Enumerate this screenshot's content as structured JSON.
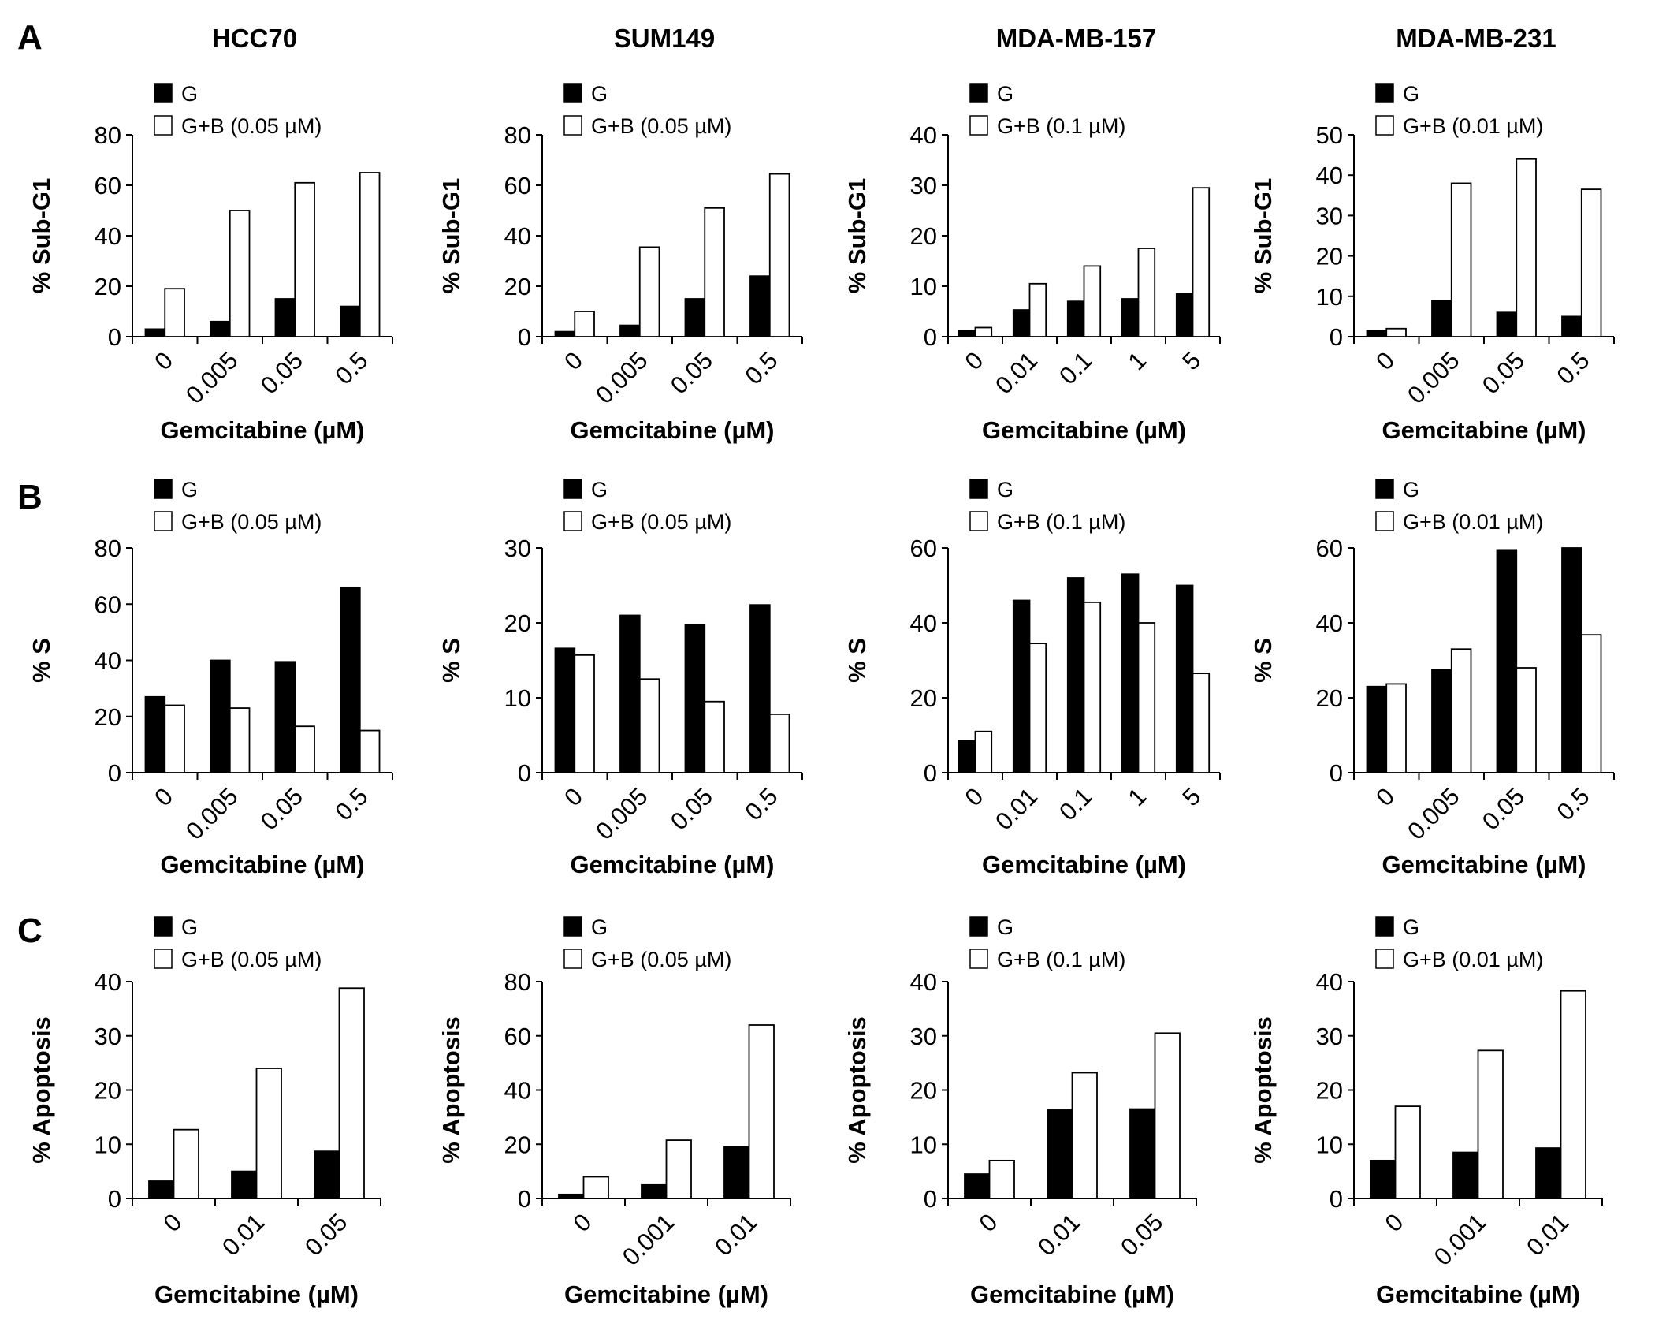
{
  "figure": {
    "panel_letters": [
      "A",
      "B",
      "C"
    ],
    "cell_lines": [
      "HCC70",
      "SUM149",
      "MDA-MB-157",
      "MDA-MB-231"
    ]
  },
  "colors": {
    "G": "#000000",
    "GB": "#ffffff",
    "axis": "#000000"
  },
  "chart_data": [
    {
      "type": "bar",
      "row": "A",
      "title": "HCC70",
      "ylabel": "% Sub-G1",
      "xlabel": "Gemcitabine (µM)",
      "ylim": [
        0,
        80
      ],
      "yticks": [
        "0",
        "20",
        "40",
        "60",
        "80"
      ],
      "categories": [
        "0",
        "0.005",
        "0.05",
        "0.5"
      ],
      "series": [
        {
          "name": "G",
          "values": [
            3,
            6,
            15,
            12
          ]
        },
        {
          "name": "G+B (0.05 µM)",
          "values": [
            19,
            50,
            61,
            65
          ]
        }
      ]
    },
    {
      "type": "bar",
      "row": "A",
      "title": "SUM149",
      "ylabel": "% Sub-G1",
      "xlabel": "Gemcitabine (µM)",
      "ylim": [
        0,
        80
      ],
      "yticks": [
        "0",
        "20",
        "40",
        "60",
        "80"
      ],
      "categories": [
        "0",
        "0.005",
        "0.05",
        "0.5"
      ],
      "series": [
        {
          "name": "G",
          "values": [
            2,
            4.5,
            15,
            24
          ]
        },
        {
          "name": "G+B (0.05 µM)",
          "values": [
            10,
            35.5,
            51,
            64.5
          ]
        }
      ]
    },
    {
      "type": "bar",
      "row": "A",
      "title": "MDA-MB-157",
      "ylabel": "% Sub-G1",
      "xlabel": "Gemcitabine (µM)",
      "ylim": [
        0,
        40
      ],
      "yticks": [
        "0",
        "10",
        "20",
        "30",
        "40"
      ],
      "categories": [
        "0",
        "0.01",
        "0.1",
        "1",
        "5"
      ],
      "series": [
        {
          "name": "G",
          "values": [
            1.2,
            5.3,
            7,
            7.5,
            8.5
          ]
        },
        {
          "name": "G+B (0.1 µM)",
          "values": [
            1.8,
            10.5,
            14,
            17.5,
            29.5
          ]
        }
      ]
    },
    {
      "type": "bar",
      "row": "A",
      "title": "MDA-MB-231",
      "ylabel": "% Sub-G1",
      "xlabel": "Gemcitabine (µM)",
      "ylim": [
        0,
        50
      ],
      "yticks": [
        "0",
        "10",
        "20",
        "30",
        "40",
        "50"
      ],
      "categories": [
        "0",
        "0.005",
        "0.05",
        "0.5"
      ],
      "series": [
        {
          "name": "G",
          "values": [
            1.5,
            9,
            6,
            5
          ]
        },
        {
          "name": "G+B (0.01 µM)",
          "values": [
            2,
            38,
            44,
            36.5
          ]
        }
      ]
    },
    {
      "type": "bar",
      "row": "B",
      "title": "",
      "ylabel": "% S",
      "xlabel": "Gemcitabine (µM)",
      "ylim": [
        0,
        80
      ],
      "yticks": [
        "0",
        "20",
        "40",
        "60",
        "80"
      ],
      "categories": [
        "0",
        "0.005",
        "0.05",
        "0.5"
      ],
      "series": [
        {
          "name": "G",
          "values": [
            27,
            40,
            39.5,
            66
          ]
        },
        {
          "name": "G+B (0.05 µM)",
          "values": [
            24,
            23,
            16.5,
            15
          ]
        }
      ]
    },
    {
      "type": "bar",
      "row": "B",
      "title": "",
      "ylabel": "% S",
      "xlabel": "Gemcitabine (µM)",
      "ylim": [
        0,
        30
      ],
      "yticks": [
        "0",
        "10",
        "20",
        "30"
      ],
      "categories": [
        "0",
        "0.005",
        "0.05",
        "0.5"
      ],
      "series": [
        {
          "name": "G",
          "values": [
            16.6,
            21,
            19.7,
            22.4
          ]
        },
        {
          "name": "G+B (0.05 µM)",
          "values": [
            15.7,
            12.5,
            9.5,
            7.8
          ]
        }
      ]
    },
    {
      "type": "bar",
      "row": "B",
      "title": "",
      "ylabel": "% S",
      "xlabel": "Gemcitabine (µM)",
      "ylim": [
        0,
        60
      ],
      "yticks": [
        "0",
        "20",
        "40",
        "60"
      ],
      "categories": [
        "0",
        "0.01",
        "0.1",
        "1",
        "5"
      ],
      "series": [
        {
          "name": "G",
          "values": [
            8.5,
            46,
            52,
            53,
            50
          ]
        },
        {
          "name": "G+B (0.1 µM)",
          "values": [
            11,
            34.5,
            45.5,
            40,
            26.5
          ]
        }
      ]
    },
    {
      "type": "bar",
      "row": "B",
      "title": "",
      "ylabel": "% S",
      "xlabel": "Gemcitabine (µM)",
      "ylim": [
        0,
        60
      ],
      "yticks": [
        "0",
        "20",
        "40",
        "60"
      ],
      "categories": [
        "0",
        "0.005",
        "0.05",
        "0.5"
      ],
      "series": [
        {
          "name": "G",
          "values": [
            23,
            27.5,
            59.5,
            60
          ]
        },
        {
          "name": "G+B (0.01 µM)",
          "values": [
            23.7,
            33,
            28,
            36.8
          ]
        }
      ]
    },
    {
      "type": "bar",
      "row": "C",
      "title": "",
      "ylabel": "% Apoptosis",
      "xlabel": "Gemcitabine (µM)",
      "ylim": [
        0,
        40
      ],
      "yticks": [
        "0",
        "10",
        "20",
        "30",
        "40"
      ],
      "categories": [
        "0",
        "0.01",
        "0.05"
      ],
      "series": [
        {
          "name": "G",
          "values": [
            3.2,
            5,
            8.7
          ]
        },
        {
          "name": "G+B (0.05 µM)",
          "values": [
            12.7,
            24,
            38.8
          ]
        }
      ]
    },
    {
      "type": "bar",
      "row": "C",
      "title": "",
      "ylabel": "% Apoptosis",
      "xlabel": "Gemcitabine (µM)",
      "ylim": [
        0,
        80
      ],
      "yticks": [
        "0",
        "20",
        "40",
        "60",
        "80"
      ],
      "categories": [
        "0",
        "0.001",
        "0.01"
      ],
      "series": [
        {
          "name": "G",
          "values": [
            1.5,
            5,
            19
          ]
        },
        {
          "name": "G+B (0.05 µM)",
          "values": [
            8,
            21.5,
            64
          ]
        }
      ]
    },
    {
      "type": "bar",
      "row": "C",
      "title": "",
      "ylabel": "% Apoptosis",
      "xlabel": "Gemcitabine (µM)",
      "ylim": [
        0,
        40
      ],
      "yticks": [
        "0",
        "10",
        "20",
        "30",
        "40"
      ],
      "categories": [
        "0",
        "0.01",
        "0.05"
      ],
      "series": [
        {
          "name": "G",
          "values": [
            4.5,
            16.3,
            16.5
          ]
        },
        {
          "name": "G+B (0.1 µM)",
          "values": [
            7,
            23.2,
            30.5
          ]
        }
      ]
    },
    {
      "type": "bar",
      "row": "C",
      "title": "",
      "ylabel": "% Apoptosis",
      "xlabel": "Gemcitabine (µM)",
      "ylim": [
        0,
        40
      ],
      "yticks": [
        "0",
        "10",
        "20",
        "30",
        "40"
      ],
      "categories": [
        "0",
        "0.001",
        "0.01"
      ],
      "series": [
        {
          "name": "G",
          "values": [
            7,
            8.5,
            9.3
          ]
        },
        {
          "name": "G+B (0.01 µM)",
          "values": [
            17,
            27.3,
            38.3
          ]
        }
      ]
    }
  ]
}
